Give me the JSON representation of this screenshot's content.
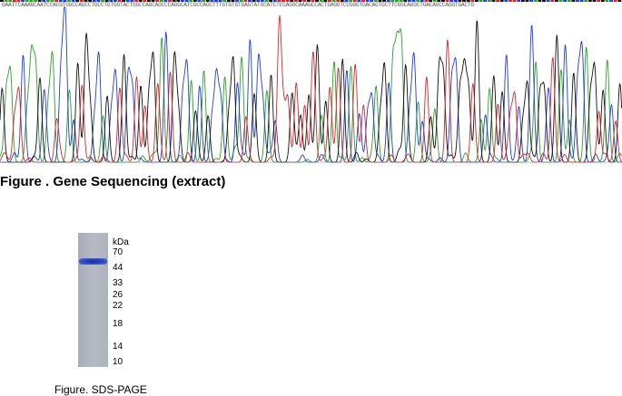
{
  "sequencing": {
    "sequence": "GAATTCAAAGCAATCCACGTGGCCAGCCTGCCTGTGGTACTGGCCAGCAGCCCAGGCATCGCCAGCTTTGTGTGTGAGTATGCATCTCCAGGCAAAGCCACTGAGGTCCGGGTGACAGTGCTTCGGCAGGCTGACAGCCAGGTGACTG",
    "caption": "Figure . Gene Sequencing (extract)",
    "trace_colors": {
      "A": "#2ca02c",
      "C": "#1f3fd0",
      "G": "#111111",
      "T": "#d62728"
    }
  },
  "gel": {
    "unit": "kDa",
    "markers": [
      "70",
      "44",
      "33",
      "26",
      "22",
      "18",
      "14",
      "10"
    ],
    "caption": "Figure. SDS-PAGE"
  }
}
